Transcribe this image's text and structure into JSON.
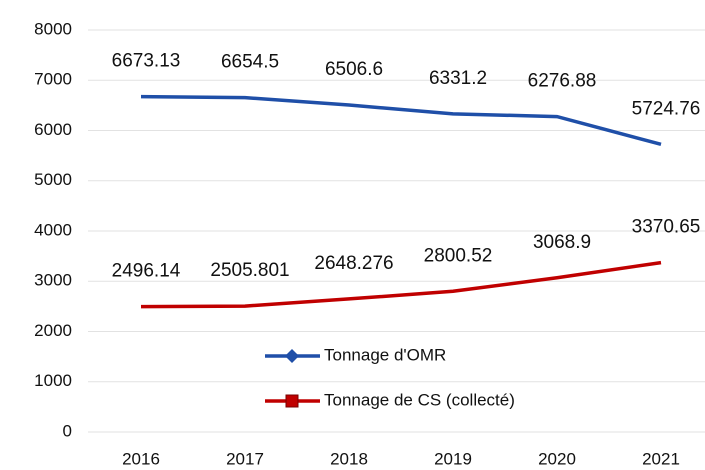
{
  "chart_data": {
    "type": "line",
    "categories": [
      "2016",
      "2017",
      "2018",
      "2019",
      "2020",
      "2021"
    ],
    "series": [
      {
        "name": "Tonnage d'OMR",
        "color": "#1f4fa8",
        "marker": "diamond",
        "values": [
          6673.13,
          6654.5,
          6506.6,
          6331.2,
          6276.88,
          5724.76
        ]
      },
      {
        "name": "Tonnage de CS (collecté)",
        "color": "#c00000",
        "marker": "square",
        "values": [
          2496.14,
          2505.801,
          2648.276,
          2800.52,
          3068.9,
          3370.65
        ]
      }
    ],
    "ylim": [
      0,
      8000
    ],
    "yticks": [
      0,
      1000,
      2000,
      3000,
      4000,
      5000,
      6000,
      7000,
      8000
    ],
    "grid": true,
    "data_labels": true,
    "legend": "bottom"
  }
}
